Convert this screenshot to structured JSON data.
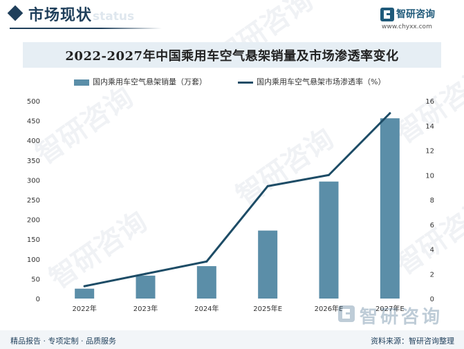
{
  "header": {
    "section_title": "市场现状",
    "section_subtitle": "status"
  },
  "brand": {
    "name": "智研咨询",
    "url": "www.chyxx.com"
  },
  "watermark": {
    "text": "智研咨询"
  },
  "colors": {
    "bar": "#5b8ea8",
    "line": "#1d4c66",
    "title_band": "#e6eef4",
    "header_dark": "#1f3f5b"
  },
  "footer": {
    "tagline": "精品报告 · 专项定制 · 品质服务",
    "source": "资料来源：智研咨询整理"
  },
  "chart_data": {
    "type": "bar",
    "title": "2022-2027年中国乘用车空气悬架销量及市场渗透率变化",
    "categories": [
      "2022年",
      "2023年",
      "2024年",
      "2025年E",
      "2026年E",
      "2027年E"
    ],
    "series": [
      {
        "name": "国内乘用车空气悬架销量（万套）",
        "type": "bar",
        "axis": "left",
        "values": [
          25,
          58,
          82,
          172,
          296,
          456
        ]
      },
      {
        "name": "国内乘用车空气悬架市场渗透率（%）",
        "type": "line",
        "axis": "right",
        "values": [
          1.0,
          2.0,
          3.0,
          9.1,
          10.0,
          15.0
        ]
      }
    ],
    "y_left": {
      "lim": [
        0,
        500
      ],
      "ticks": [
        "0",
        "50",
        "100",
        "150",
        "200",
        "250",
        "300",
        "350",
        "400",
        "450",
        "500"
      ]
    },
    "y_right": {
      "lim": [
        0,
        16
      ],
      "ticks": [
        "0",
        "2",
        "4",
        "6",
        "8",
        "10",
        "12",
        "14",
        "16"
      ]
    },
    "grid": false,
    "legend": "top-center"
  }
}
